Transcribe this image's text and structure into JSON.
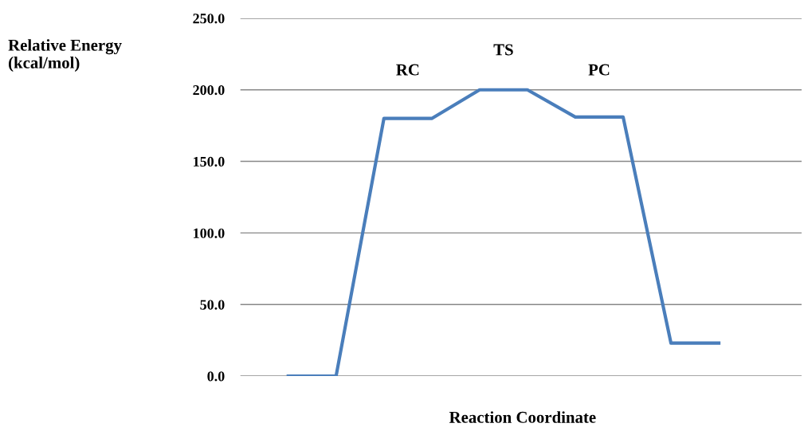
{
  "chart_data": {
    "type": "line",
    "ylabel": "Relative Energy\n(kcal/mol)",
    "xlabel": "Reaction Coordinate",
    "categories": [
      null,
      null,
      null,
      null,
      null,
      null,
      null,
      null,
      null,
      null,
      null,
      null
    ],
    "series": [
      {
        "color": "#4a7ebb",
        "values": [
          null,
          0,
          0,
          180,
          180,
          200,
          200,
          181,
          181,
          23,
          23,
          null
        ]
      }
    ],
    "ylim": [
      0,
      250
    ],
    "yticks": [
      {
        "value": 0,
        "label": "0.0"
      },
      {
        "value": 50,
        "label": "50.0"
      },
      {
        "value": 100,
        "label": "100.0"
      },
      {
        "value": 150,
        "label": "150.0"
      },
      {
        "value": 200,
        "label": "200.0"
      },
      {
        "value": 250,
        "label": "250.0"
      }
    ],
    "grid": "y",
    "marker": "none",
    "line_style": "solid",
    "annotations": [
      "RC",
      "TS",
      "PC"
    ]
  }
}
